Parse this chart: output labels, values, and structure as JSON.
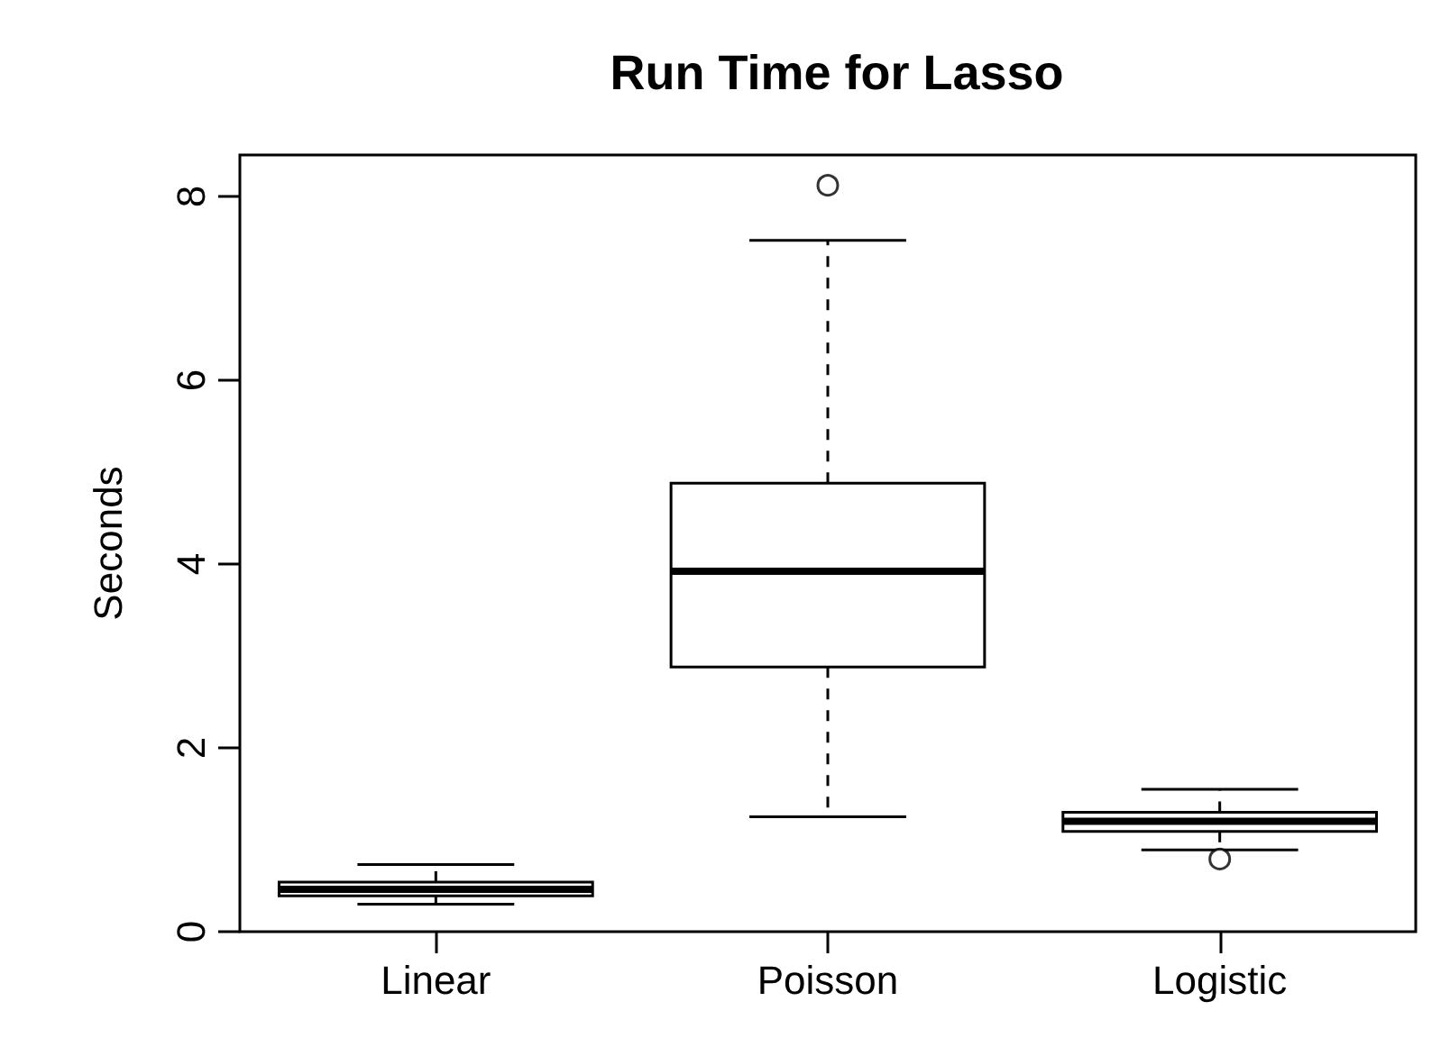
{
  "chart_data": {
    "type": "box",
    "title": "Run Time for Lasso",
    "ylabel": "Seconds",
    "categories": [
      "Linear",
      "Poisson",
      "Logistic"
    ],
    "boxes": [
      {
        "low": 0.3,
        "q1": 0.39,
        "median": 0.46,
        "q3": 0.54,
        "high": 0.73
      },
      {
        "low": 1.25,
        "q1": 2.88,
        "median": 3.92,
        "q3": 4.88,
        "high": 7.52,
        "outliers": [
          8.12
        ]
      },
      {
        "low": 0.89,
        "q1": 1.09,
        "median": 1.2,
        "q3": 1.3,
        "high": 1.55,
        "outliers": [
          0.79
        ]
      }
    ],
    "color": "#000000",
    "ylim": [
      0,
      8.45
    ],
    "yticks": [
      0,
      2,
      4,
      6,
      8
    ],
    "grid": false,
    "legend": false
  }
}
